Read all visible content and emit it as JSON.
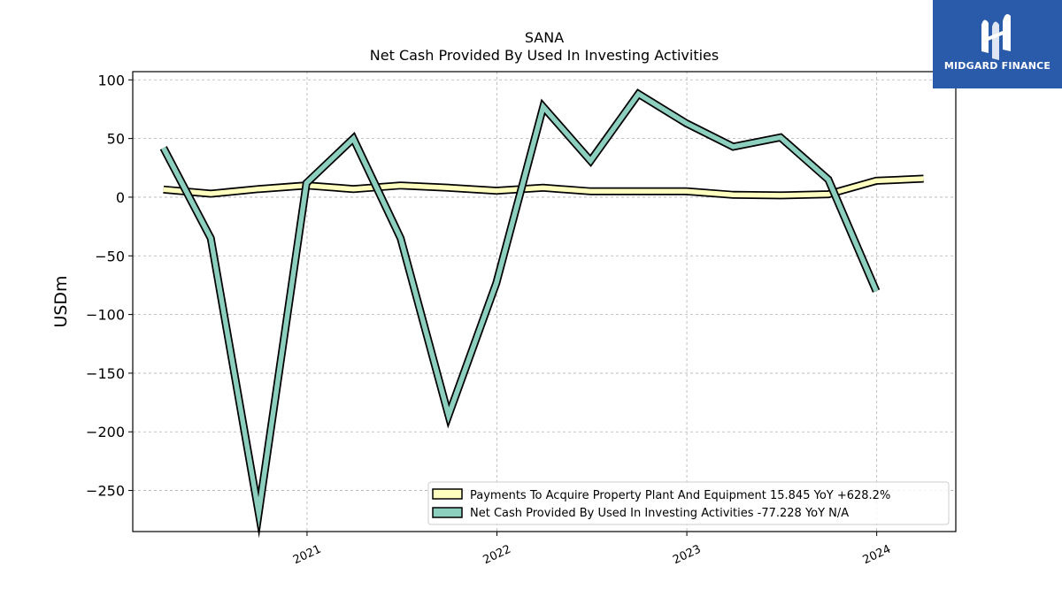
{
  "brand": {
    "name": "MIDGARD FINANCE",
    "logo_color": "#2a5bab"
  },
  "chart_data": {
    "type": "line",
    "title": "SANA",
    "subtitle": "Net Cash Provided By Used In Investing Activities",
    "xlabel": "",
    "ylabel": "USDm",
    "ylim": [
      -285,
      107
    ],
    "xlim": [
      "2020-02-01",
      "2024-06-01"
    ],
    "y_ticks": [
      100,
      50,
      0,
      -50,
      -100,
      -150,
      -200,
      -250
    ],
    "x_ticks": [
      {
        "label": "2021",
        "date": "2021-01-01"
      },
      {
        "label": "2022",
        "date": "2022-01-01"
      },
      {
        "label": "2023",
        "date": "2023-01-01"
      },
      {
        "label": "2024",
        "date": "2024-01-01"
      }
    ],
    "grid": true,
    "legend_position": "lower-right",
    "x": [
      "2020-03-31",
      "2020-06-30",
      "2020-09-30",
      "2020-12-31",
      "2021-03-31",
      "2021-06-30",
      "2021-09-30",
      "2021-12-31",
      "2022-03-31",
      "2022-06-30",
      "2022-09-30",
      "2022-12-31",
      "2023-03-31",
      "2023-06-30",
      "2023-09-30",
      "2023-12-31",
      "2024-03-31"
    ],
    "series": [
      {
        "name": "Payments To Acquire Property Plant And Equipment  15.845 YoY +628.2%",
        "color": "#ffffbf",
        "values": [
          6.5,
          3,
          7,
          10,
          7,
          10,
          8,
          5.5,
          8,
          5,
          5,
          5,
          2,
          1.5,
          2.5,
          14,
          15.8
        ]
      },
      {
        "name": "Net Cash Provided By Used In Investing Activities  -77.228 YoY N/A",
        "color": "#8ccfbf",
        "values": [
          42,
          -35,
          -269,
          12,
          50,
          -35,
          -186,
          -73,
          77,
          31,
          88,
          63,
          43,
          51,
          15,
          -80,
          null
        ]
      }
    ]
  }
}
